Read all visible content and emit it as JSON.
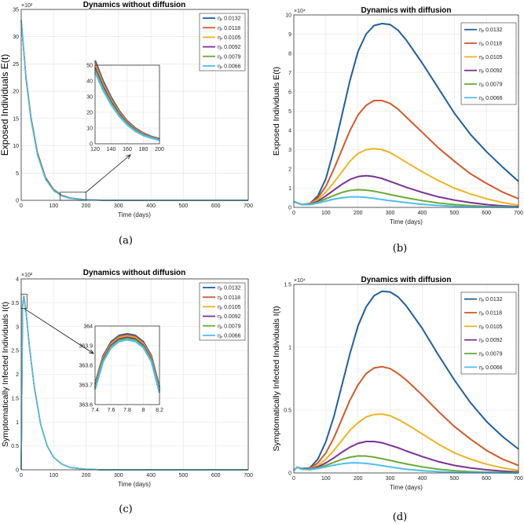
{
  "captions": [
    "(a)",
    "(b)",
    "(c)",
    "(d)"
  ],
  "colors": {
    "series": [
      "#1f5fa0",
      "#d35a2a",
      "#eeb422",
      "#7b3294",
      "#6aaa35",
      "#4dbeee"
    ]
  },
  "chart_data": [
    {
      "type": "line",
      "title": "Dynamics without diffusion",
      "xlabel": "Time (days)",
      "ylabel": "Exposed Individuals E(t)",
      "y_exponent": "×10²",
      "xlim": [
        0,
        700
      ],
      "ylim": [
        0,
        35
      ],
      "xticks": [
        0,
        100,
        200,
        300,
        400,
        500,
        600,
        700
      ],
      "yticks": [
        0,
        5,
        10,
        15,
        20,
        25,
        30,
        35
      ],
      "x": [
        0,
        15,
        30,
        50,
        75,
        100,
        125,
        150,
        200,
        250,
        300,
        400,
        500,
        600,
        700
      ],
      "series": [
        {
          "name": "ηᵥ 0.0132",
          "values": [
            33.0,
            22.5,
            15.3,
            8.8,
            4.2,
            2.0,
            0.95,
            0.45,
            0.1,
            0.02,
            0.0,
            0.0,
            0.0,
            0.0,
            0.0
          ]
        },
        {
          "name": "ηᵥ 0.0118",
          "values": [
            33.0,
            22.4,
            15.2,
            8.7,
            4.1,
            1.95,
            0.92,
            0.43,
            0.09,
            0.02,
            0.0,
            0.0,
            0.0,
            0.0,
            0.0
          ]
        },
        {
          "name": "ηᵥ 0.0105",
          "values": [
            33.0,
            22.3,
            15.1,
            8.6,
            4.0,
            1.9,
            0.89,
            0.41,
            0.09,
            0.02,
            0.0,
            0.0,
            0.0,
            0.0,
            0.0
          ]
        },
        {
          "name": "ηᵥ 0.0092",
          "values": [
            33.0,
            22.2,
            15.0,
            8.5,
            3.95,
            1.85,
            0.86,
            0.4,
            0.08,
            0.02,
            0.0,
            0.0,
            0.0,
            0.0,
            0.0
          ]
        },
        {
          "name": "ηᵥ 0.0079",
          "values": [
            33.0,
            22.1,
            14.9,
            8.4,
            3.9,
            1.8,
            0.83,
            0.38,
            0.08,
            0.01,
            0.0,
            0.0,
            0.0,
            0.0,
            0.0
          ]
        },
        {
          "name": "ηᵥ 0.0066",
          "values": [
            33.0,
            22.0,
            14.8,
            8.3,
            3.85,
            1.75,
            0.8,
            0.36,
            0.07,
            0.01,
            0.0,
            0.0,
            0.0,
            0.0,
            0.0
          ]
        }
      ],
      "legend": "top-right",
      "inset": {
        "xlim": [
          120,
          200
        ],
        "ylim": [
          0,
          50
        ],
        "xticks": [
          120,
          140,
          160,
          180,
          200
        ],
        "yticks": [
          0,
          10,
          20,
          30,
          40,
          50
        ],
        "x": [
          120,
          130,
          140,
          150,
          160,
          170,
          180,
          190,
          200
        ],
        "series": [
          [
            53,
            40,
            29.5,
            21.0,
            14.5,
            10.0,
            6.8,
            4.6,
            3.2
          ],
          [
            51.5,
            38.8,
            28.5,
            20.3,
            14.0,
            9.6,
            6.5,
            4.4,
            3.0
          ],
          [
            50,
            37.6,
            27.6,
            19.6,
            13.5,
            9.2,
            6.2,
            4.2,
            2.8
          ],
          [
            48.5,
            36.4,
            26.7,
            18.9,
            13.0,
            8.8,
            5.9,
            4.0,
            2.6
          ],
          [
            47,
            35.2,
            25.8,
            18.2,
            12.5,
            8.4,
            5.6,
            3.8,
            2.4
          ],
          [
            45.5,
            34.0,
            24.9,
            17.5,
            12.0,
            8.0,
            5.3,
            3.6,
            2.2
          ]
        ]
      }
    },
    {
      "type": "line",
      "title": "Dynamics with diffusion",
      "xlabel": "Time (days)",
      "ylabel": "Exposed Individuals E(t)",
      "y_exponent": "×10⁴",
      "xlim": [
        0,
        700
      ],
      "ylim": [
        0,
        10
      ],
      "xticks": [
        0,
        100,
        200,
        300,
        400,
        500,
        600,
        700
      ],
      "yticks": [
        0,
        1,
        2,
        3,
        4,
        5,
        6,
        7,
        8,
        9,
        10
      ],
      "legend": "top-right",
      "x": [
        0,
        25,
        50,
        75,
        100,
        125,
        150,
        175,
        200,
        225,
        250,
        275,
        300,
        325,
        350,
        400,
        450,
        500,
        550,
        600,
        650,
        700
      ],
      "series": [
        {
          "name": "ηᵥ 0.0132",
          "values": [
            0.3,
            0.15,
            0.2,
            0.6,
            1.5,
            3.0,
            4.8,
            6.6,
            8.1,
            9.0,
            9.45,
            9.55,
            9.5,
            9.2,
            8.7,
            7.5,
            6.2,
            4.9,
            3.8,
            2.9,
            2.1,
            1.35
          ]
        },
        {
          "name": "ηᵥ 0.0118",
          "values": [
            0.3,
            0.15,
            0.18,
            0.5,
            1.1,
            2.0,
            3.0,
            4.0,
            4.8,
            5.3,
            5.55,
            5.55,
            5.4,
            5.1,
            4.7,
            3.9,
            3.1,
            2.4,
            1.75,
            1.25,
            0.8,
            0.45
          ]
        },
        {
          "name": "ηᵥ 0.0105",
          "values": [
            0.3,
            0.15,
            0.17,
            0.4,
            0.8,
            1.3,
            1.85,
            2.4,
            2.8,
            3.0,
            3.05,
            3.0,
            2.85,
            2.6,
            2.35,
            1.85,
            1.4,
            1.0,
            0.7,
            0.45,
            0.25,
            0.12
          ]
        },
        {
          "name": "ηᵥ 0.0092",
          "values": [
            0.3,
            0.15,
            0.16,
            0.32,
            0.6,
            0.9,
            1.2,
            1.45,
            1.6,
            1.65,
            1.6,
            1.5,
            1.35,
            1.2,
            1.05,
            0.78,
            0.55,
            0.38,
            0.25,
            0.15,
            0.08,
            0.04
          ]
        },
        {
          "name": "ηᵥ 0.0079",
          "values": [
            0.3,
            0.15,
            0.15,
            0.26,
            0.45,
            0.62,
            0.78,
            0.88,
            0.92,
            0.9,
            0.84,
            0.76,
            0.67,
            0.58,
            0.5,
            0.35,
            0.23,
            0.15,
            0.09,
            0.05,
            0.03,
            0.01
          ]
        },
        {
          "name": "ηᵥ 0.0066",
          "values": [
            0.3,
            0.15,
            0.14,
            0.22,
            0.33,
            0.43,
            0.5,
            0.54,
            0.55,
            0.52,
            0.47,
            0.41,
            0.35,
            0.3,
            0.25,
            0.16,
            0.1,
            0.06,
            0.03,
            0.02,
            0.01,
            0.0
          ]
        }
      ]
    },
    {
      "type": "line",
      "title": "Dynamics without diffusion",
      "xlabel": "Time (days)",
      "ylabel": "Symptomatically Infected Individuals I(t)",
      "y_exponent": "×10²",
      "xlim": [
        0,
        700
      ],
      "ylim": [
        0,
        4
      ],
      "xticks": [
        0,
        100,
        200,
        300,
        400,
        500,
        600,
        700
      ],
      "yticks": [
        0,
        0.5,
        1,
        1.5,
        2,
        2.5,
        3,
        3.5,
        4
      ],
      "legend": "top-right",
      "x": [
        0,
        4,
        8,
        15,
        25,
        40,
        60,
        80,
        100,
        125,
        150,
        200,
        250,
        300,
        400,
        500,
        600,
        700
      ],
      "series": [
        {
          "name": "ηᵥ 0.0132",
          "values": [
            0.0,
            3.4,
            3.64,
            3.3,
            2.6,
            1.75,
            0.95,
            0.5,
            0.26,
            0.12,
            0.05,
            0.01,
            0.0,
            0.0,
            0.0,
            0.0,
            0.0,
            0.0
          ]
        },
        {
          "name": "ηᵥ 0.0118",
          "values": [
            0.0,
            3.4,
            3.64,
            3.3,
            2.6,
            1.75,
            0.95,
            0.5,
            0.26,
            0.12,
            0.05,
            0.01,
            0.0,
            0.0,
            0.0,
            0.0,
            0.0,
            0.0
          ]
        },
        {
          "name": "ηᵥ 0.0105",
          "values": [
            0.0,
            3.4,
            3.64,
            3.3,
            2.6,
            1.75,
            0.95,
            0.5,
            0.26,
            0.12,
            0.05,
            0.01,
            0.0,
            0.0,
            0.0,
            0.0,
            0.0,
            0.0
          ]
        },
        {
          "name": "ηᵥ 0.0092",
          "values": [
            0.0,
            3.4,
            3.64,
            3.3,
            2.6,
            1.75,
            0.95,
            0.5,
            0.26,
            0.12,
            0.05,
            0.01,
            0.0,
            0.0,
            0.0,
            0.0,
            0.0,
            0.0
          ]
        },
        {
          "name": "ηᵥ 0.0079",
          "values": [
            0.0,
            3.4,
            3.64,
            3.3,
            2.6,
            1.75,
            0.95,
            0.5,
            0.26,
            0.12,
            0.05,
            0.01,
            0.0,
            0.0,
            0.0,
            0.0,
            0.0,
            0.0
          ]
        },
        {
          "name": "ηᵥ 0.0066",
          "values": [
            0.0,
            3.4,
            3.64,
            3.3,
            2.6,
            1.75,
            0.95,
            0.5,
            0.26,
            0.12,
            0.05,
            0.01,
            0.0,
            0.0,
            0.0,
            0.0,
            0.0,
            0.0
          ]
        }
      ],
      "inset": {
        "xlim": [
          7.4,
          8.2
        ],
        "ylim": [
          363.6,
          364
        ],
        "xticks": [
          7.4,
          7.6,
          7.8,
          8,
          8.2
        ],
        "yticks": [
          363.6,
          363.7,
          363.8,
          363.9,
          364
        ],
        "x": [
          7.4,
          7.5,
          7.6,
          7.7,
          7.8,
          7.9,
          8.0,
          8.1,
          8.2
        ],
        "series": [
          [
            363.707,
            363.848,
            363.92,
            363.952,
            363.96,
            363.952,
            363.92,
            363.848,
            363.69
          ],
          [
            363.701,
            363.842,
            363.914,
            363.946,
            363.954,
            363.946,
            363.914,
            363.842,
            363.684
          ],
          [
            363.695,
            363.836,
            363.908,
            363.94,
            363.948,
            363.94,
            363.908,
            363.836,
            363.678
          ],
          [
            363.689,
            363.83,
            363.902,
            363.934,
            363.942,
            363.934,
            363.902,
            363.83,
            363.672
          ],
          [
            363.683,
            363.824,
            363.896,
            363.928,
            363.936,
            363.928,
            363.896,
            363.824,
            363.666
          ],
          [
            363.677,
            363.818,
            363.89,
            363.922,
            363.93,
            363.922,
            363.89,
            363.818,
            363.66
          ]
        ]
      }
    },
    {
      "type": "line",
      "title": "Dynamics with diffusion",
      "xlabel": "Time (days)",
      "ylabel": "Symptomatically Infected Individuals I(t)",
      "y_exponent": "×10⁴",
      "xlim": [
        0,
        700
      ],
      "ylim": [
        0,
        1.5
      ],
      "xticks": [
        0,
        100,
        200,
        300,
        400,
        500,
        600,
        700
      ],
      "yticks": [
        0,
        0.5,
        1,
        1.5
      ],
      "legend": "top-right",
      "x": [
        0,
        10,
        25,
        50,
        75,
        100,
        125,
        150,
        175,
        200,
        225,
        250,
        275,
        300,
        325,
        350,
        400,
        450,
        500,
        550,
        600,
        650,
        700
      ],
      "series": [
        {
          "name": "ηᵥ 0.0132",
          "values": [
            0.02,
            0.045,
            0.035,
            0.04,
            0.11,
            0.25,
            0.45,
            0.7,
            0.95,
            1.17,
            1.32,
            1.41,
            1.445,
            1.44,
            1.4,
            1.33,
            1.15,
            0.94,
            0.74,
            0.56,
            0.41,
            0.29,
            0.19
          ]
        },
        {
          "name": "ηᵥ 0.0118",
          "values": [
            0.02,
            0.045,
            0.033,
            0.035,
            0.08,
            0.16,
            0.28,
            0.43,
            0.58,
            0.7,
            0.79,
            0.835,
            0.845,
            0.83,
            0.79,
            0.74,
            0.62,
            0.49,
            0.37,
            0.27,
            0.18,
            0.11,
            0.06
          ]
        },
        {
          "name": "ηᵥ 0.0105",
          "values": [
            0.02,
            0.045,
            0.032,
            0.032,
            0.06,
            0.11,
            0.18,
            0.26,
            0.34,
            0.4,
            0.445,
            0.465,
            0.468,
            0.455,
            0.425,
            0.39,
            0.31,
            0.23,
            0.16,
            0.11,
            0.07,
            0.04,
            0.02
          ]
        },
        {
          "name": "ηᵥ 0.0092",
          "values": [
            0.02,
            0.045,
            0.031,
            0.03,
            0.048,
            0.08,
            0.12,
            0.165,
            0.205,
            0.235,
            0.25,
            0.25,
            0.24,
            0.22,
            0.2,
            0.175,
            0.13,
            0.09,
            0.06,
            0.04,
            0.025,
            0.015,
            0.008
          ]
        },
        {
          "name": "ηᵥ 0.0079",
          "values": [
            0.02,
            0.045,
            0.03,
            0.028,
            0.04,
            0.06,
            0.085,
            0.108,
            0.125,
            0.135,
            0.134,
            0.126,
            0.113,
            0.1,
            0.085,
            0.072,
            0.048,
            0.03,
            0.018,
            0.01,
            0.006,
            0.003,
            0.002
          ]
        },
        {
          "name": "ηᵥ 0.0066",
          "values": [
            0.02,
            0.045,
            0.029,
            0.026,
            0.035,
            0.048,
            0.062,
            0.073,
            0.08,
            0.08,
            0.076,
            0.068,
            0.058,
            0.048,
            0.038,
            0.03,
            0.018,
            0.01,
            0.005,
            0.003,
            0.002,
            0.001,
            0.0
          ]
        }
      ]
    }
  ]
}
